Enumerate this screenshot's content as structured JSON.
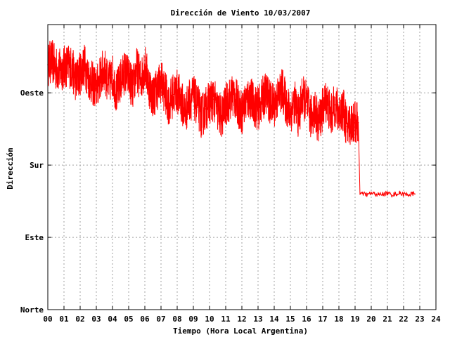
{
  "chart_data": {
    "type": "line",
    "title": "Dirección de Viento 10/03/2007",
    "xlabel": "Tiempo (Hora Local Argentina)",
    "ylabel": "Dirección",
    "x_ticks": [
      "00",
      "01",
      "02",
      "03",
      "04",
      "05",
      "06",
      "07",
      "08",
      "09",
      "10",
      "11",
      "12",
      "13",
      "14",
      "15",
      "16",
      "17",
      "18",
      "19",
      "20",
      "21",
      "22",
      "23",
      "24"
    ],
    "x_range": [
      0,
      24
    ],
    "y_ticks": [
      {
        "label": "Norte",
        "value": 0
      },
      {
        "label": "Este",
        "value": 90
      },
      {
        "label": "Sur",
        "value": 180
      },
      {
        "label": "Oeste",
        "value": 270
      }
    ],
    "y_range": [
      0,
      355
    ],
    "grid": true,
    "series": [
      {
        "color": "#ff0000",
        "x": [
          0.0,
          0.25,
          0.5,
          0.75,
          1.0,
          1.25,
          1.5,
          1.75,
          2.0,
          2.25,
          2.5,
          2.75,
          3.0,
          3.25,
          3.5,
          3.75,
          4.0,
          4.25,
          4.5,
          4.75,
          5.0,
          5.25,
          5.5,
          5.75,
          6.0,
          6.25,
          6.5,
          6.75,
          7.0,
          7.25,
          7.5,
          7.75,
          8.0,
          8.25,
          8.5,
          8.75,
          9.0,
          9.25,
          9.5,
          9.75,
          10.0,
          10.25,
          10.5,
          10.75,
          11.0,
          11.25,
          11.5,
          11.75,
          12.0,
          12.25,
          12.5,
          12.75,
          13.0,
          13.25,
          13.5,
          13.75,
          14.0,
          14.25,
          14.5,
          14.75,
          15.0,
          15.25,
          15.5,
          15.75,
          16.0,
          16.25,
          16.5,
          16.75,
          17.0,
          17.25,
          17.5,
          17.75,
          18.0,
          18.25,
          18.5,
          18.75,
          19.0,
          19.2,
          19.3,
          19.5,
          19.75,
          20.0,
          20.25,
          20.5,
          20.75,
          21.0,
          21.25,
          21.5,
          21.75,
          22.0,
          22.25,
          22.5,
          22.7
        ],
        "y": [
          305,
          310,
          300,
          298,
          302,
          305,
          300,
          285,
          295,
          305,
          290,
          282,
          275,
          290,
          300,
          280,
          292,
          270,
          285,
          296,
          290,
          275,
          300,
          285,
          305,
          280,
          265,
          275,
          285,
          270,
          255,
          268,
          272,
          260,
          245,
          262,
          265,
          255,
          240,
          250,
          258,
          262,
          248,
          240,
          255,
          262,
          268,
          255,
          245,
          260,
          265,
          255,
          250,
          262,
          270,
          258,
          255,
          265,
          275,
          255,
          245,
          260,
          240,
          265,
          258,
          240,
          250,
          232,
          250,
          262,
          240,
          255,
          245,
          250,
          228,
          233,
          233,
          233,
          144,
          144,
          143,
          145,
          144,
          143,
          144,
          145,
          143,
          144,
          145,
          144,
          143,
          144,
          144
        ]
      }
    ]
  }
}
